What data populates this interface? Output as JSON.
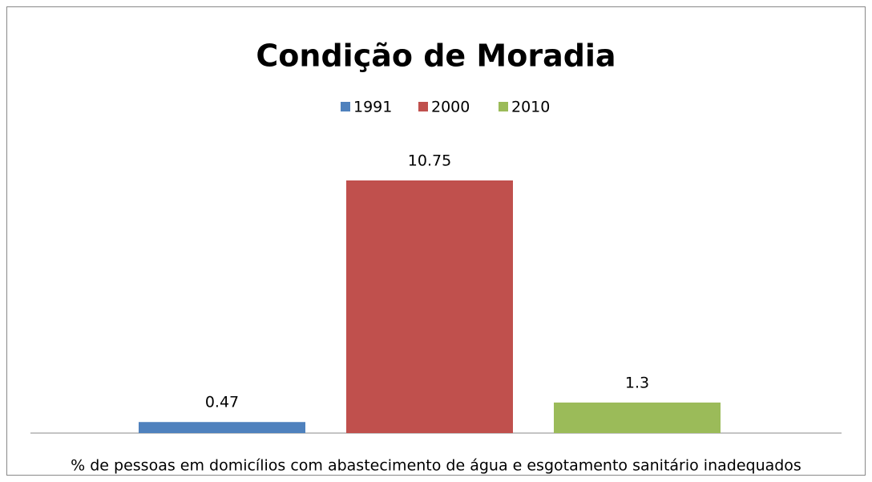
{
  "chart_data": {
    "type": "bar",
    "title": "Condição de Moradia",
    "categories": [
      "% de pessoas em domicílios com abastecimento de água e esgotamento sanitário inadequados"
    ],
    "series": [
      {
        "name": "1991",
        "color": "#4f81bd",
        "values": [
          0.47
        ]
      },
      {
        "name": "2000",
        "color": "#c0504d",
        "values": [
          10.75
        ]
      },
      {
        "name": "2010",
        "color": "#9bbb59",
        "values": [
          1.3
        ]
      }
    ],
    "legend": "top"
  }
}
